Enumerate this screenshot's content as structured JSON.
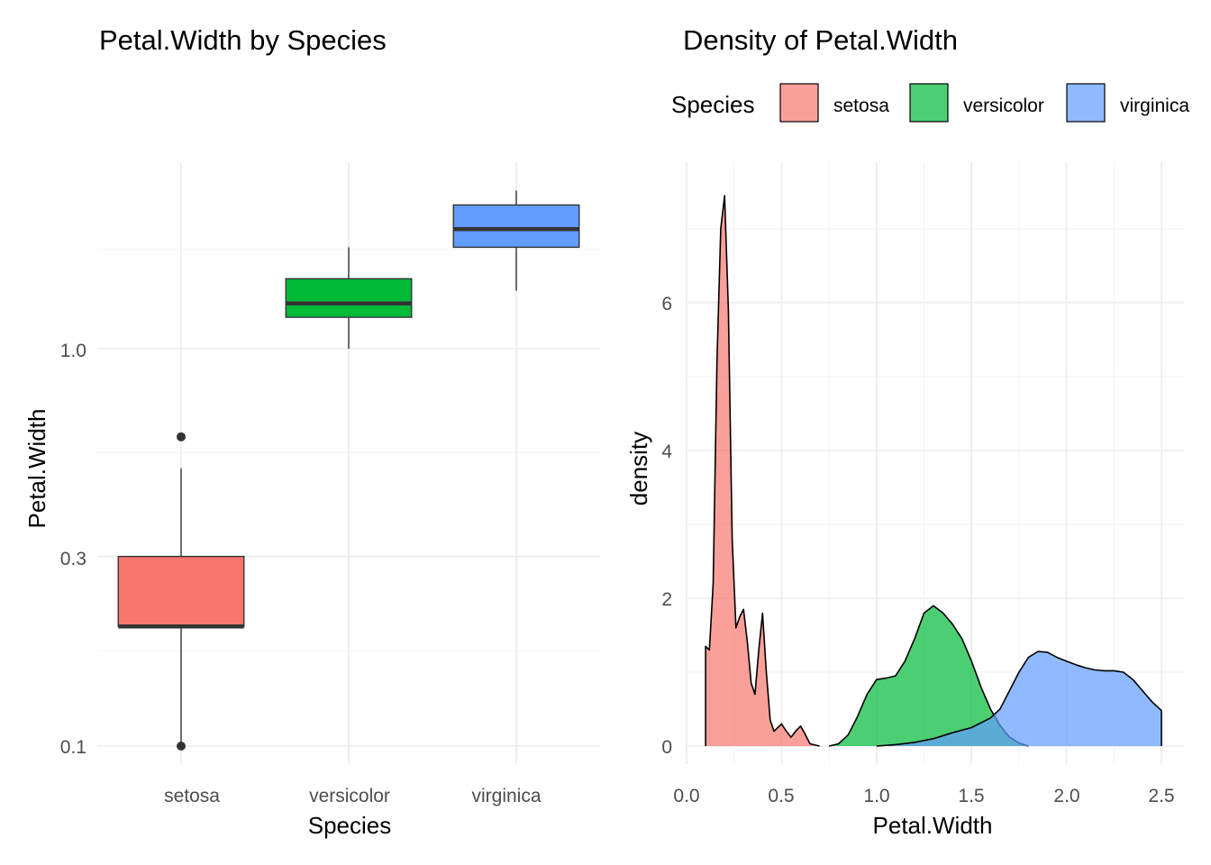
{
  "colors": {
    "setosa": "#F8766D",
    "versicolor": "#00BA38",
    "virginica": "#619CFF",
    "median": "#333333",
    "outline": "#333333"
  },
  "left": {
    "title": "Petal.Width by Species",
    "xlabel": "Species",
    "ylabel": "Petal.Width",
    "yticks": [
      "1.0",
      "0.3",
      "0.1"
    ]
  },
  "right": {
    "title": "Density of Petal.Width",
    "xlabel": "Petal.Width",
    "ylabel": "density",
    "xticks": [
      "0.0",
      "0.5",
      "1.0",
      "1.5",
      "2.0",
      "2.5"
    ],
    "yticks": [
      "0",
      "2",
      "4",
      "6"
    ],
    "legend": {
      "title": "Species",
      "items": [
        "setosa",
        "versicolor",
        "virginica"
      ]
    }
  },
  "chart_data": [
    {
      "type": "box",
      "title": "Petal.Width by Species",
      "xlabel": "Species",
      "ylabel": "Petal.Width",
      "y_scale": "log10",
      "ylim": [
        0.1,
        2.5
      ],
      "categories": [
        "setosa",
        "versicolor",
        "virginica"
      ],
      "boxes": [
        {
          "name": "setosa",
          "min": 0.1,
          "q1": 0.2,
          "median": 0.2,
          "q3": 0.3,
          "max": 0.5,
          "outliers": [
            0.1,
            0.6
          ]
        },
        {
          "name": "versicolor",
          "min": 1.0,
          "q1": 1.2,
          "median": 1.3,
          "q3": 1.5,
          "max": 1.8,
          "outliers": []
        },
        {
          "name": "virginica",
          "min": 1.4,
          "q1": 1.8,
          "median": 2.0,
          "q3": 2.3,
          "max": 2.5,
          "outliers": []
        }
      ],
      "grid": true
    },
    {
      "type": "area",
      "title": "Density of Petal.Width",
      "xlabel": "Petal.Width",
      "ylabel": "density",
      "xlim": [
        0,
        2.5
      ],
      "ylim": [
        0,
        7.5
      ],
      "legend": "top",
      "grid": true,
      "series": [
        {
          "name": "setosa",
          "x": [
            0.1,
            0.12,
            0.14,
            0.16,
            0.18,
            0.2,
            0.22,
            0.24,
            0.26,
            0.28,
            0.3,
            0.32,
            0.34,
            0.36,
            0.38,
            0.4,
            0.42,
            0.44,
            0.46,
            0.48,
            0.5,
            0.52,
            0.55,
            0.58,
            0.6,
            0.62,
            0.65,
            0.7
          ],
          "y": [
            1.35,
            1.3,
            2.2,
            5.2,
            7.0,
            7.45,
            5.9,
            2.8,
            1.6,
            1.75,
            1.85,
            1.4,
            0.85,
            0.7,
            1.3,
            1.8,
            1.0,
            0.35,
            0.2,
            0.25,
            0.3,
            0.22,
            0.12,
            0.22,
            0.27,
            0.18,
            0.03,
            0.0
          ]
        },
        {
          "name": "versicolor",
          "x": [
            0.75,
            0.8,
            0.85,
            0.9,
            0.95,
            1.0,
            1.05,
            1.1,
            1.15,
            1.2,
            1.25,
            1.3,
            1.35,
            1.4,
            1.45,
            1.5,
            1.55,
            1.6,
            1.65,
            1.7,
            1.75,
            1.8
          ],
          "y": [
            0.0,
            0.03,
            0.15,
            0.4,
            0.7,
            0.9,
            0.92,
            0.95,
            1.15,
            1.45,
            1.8,
            1.9,
            1.8,
            1.65,
            1.45,
            1.15,
            0.8,
            0.5,
            0.28,
            0.12,
            0.04,
            0.0
          ]
        },
        {
          "name": "virginica",
          "x": [
            1.0,
            1.1,
            1.2,
            1.3,
            1.4,
            1.5,
            1.6,
            1.65,
            1.7,
            1.75,
            1.8,
            1.85,
            1.9,
            1.95,
            2.0,
            2.05,
            2.1,
            2.15,
            2.2,
            2.25,
            2.3,
            2.35,
            2.4,
            2.45,
            2.5
          ],
          "y": [
            0.0,
            0.02,
            0.05,
            0.1,
            0.18,
            0.25,
            0.38,
            0.5,
            0.75,
            1.0,
            1.2,
            1.28,
            1.27,
            1.2,
            1.15,
            1.1,
            1.06,
            1.03,
            1.02,
            1.02,
            1.0,
            0.9,
            0.75,
            0.6,
            0.48
          ]
        }
      ]
    }
  ]
}
